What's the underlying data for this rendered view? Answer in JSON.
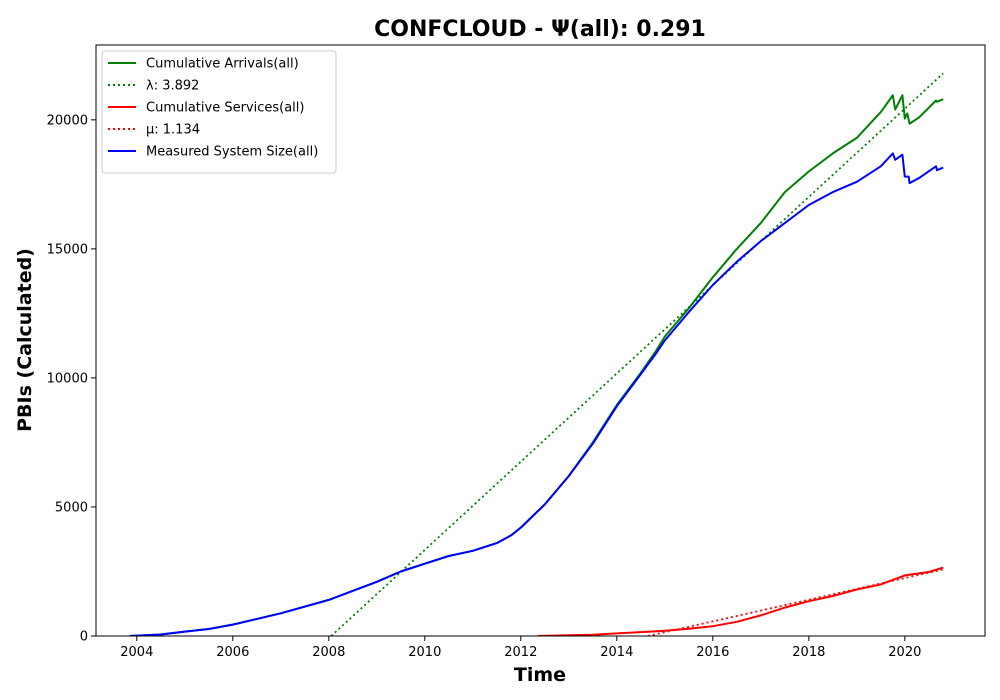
{
  "chart_data": {
    "type": "line",
    "title": "CONFCLOUD -  Ψ(all): 0.291",
    "xlabel": "Time",
    "ylabel": "PBIs (Calculated)",
    "xlim": [
      2003.15,
      2021.67
    ],
    "ylim": [
      0,
      22900
    ],
    "xticks": [
      2004,
      2006,
      2008,
      2010,
      2012,
      2014,
      2016,
      2018,
      2020
    ],
    "xtick_labels": [
      "2004",
      "2006",
      "2008",
      "2010",
      "2012",
      "2014",
      "2016",
      "2018",
      "2020"
    ],
    "yticks": [
      0,
      5000,
      10000,
      15000,
      20000
    ],
    "ytick_labels": [
      "0",
      "5000",
      "10000",
      "15000",
      "20000"
    ],
    "grid": false,
    "legend_position": "upper-left",
    "series": [
      {
        "name": "Cumulative Arrivals(all)",
        "color": "#008000",
        "style": "solid",
        "points": [
          [
            2003.85,
            0
          ],
          [
            2004.5,
            60
          ],
          [
            2005,
            170
          ],
          [
            2005.5,
            270
          ],
          [
            2006,
            440
          ],
          [
            2007,
            880
          ],
          [
            2008,
            1400
          ],
          [
            2009,
            2100
          ],
          [
            2009.5,
            2500
          ],
          [
            2010,
            2800
          ],
          [
            2010.5,
            3100
          ],
          [
            2011,
            3300
          ],
          [
            2011.5,
            3600
          ],
          [
            2011.8,
            3900
          ],
          [
            2012,
            4200
          ],
          [
            2012.5,
            5100
          ],
          [
            2013,
            6200
          ],
          [
            2013.5,
            7500
          ],
          [
            2014,
            8950
          ],
          [
            2014.5,
            10200
          ],
          [
            2014.8,
            11000
          ],
          [
            2015,
            11600
          ],
          [
            2015.5,
            12700
          ],
          [
            2016,
            13900
          ],
          [
            2016.5,
            15000
          ],
          [
            2017,
            16000
          ],
          [
            2017.5,
            17200
          ],
          [
            2018,
            18000
          ],
          [
            2018.5,
            18700
          ],
          [
            2019,
            19300
          ],
          [
            2019.5,
            20300
          ],
          [
            2019.75,
            20950
          ],
          [
            2019.8,
            20400
          ],
          [
            2019.95,
            20950
          ],
          [
            2020,
            20050
          ],
          [
            2020.05,
            20250
          ],
          [
            2020.1,
            19850
          ],
          [
            2020.3,
            20100
          ],
          [
            2020.65,
            20750
          ],
          [
            2020.67,
            20700
          ],
          [
            2020.8,
            20800
          ]
        ]
      },
      {
        "name": "λ: 3.892",
        "color": "#008000",
        "style": "dotted",
        "points": [
          [
            2008.05,
            0
          ],
          [
            2020.8,
            21800
          ]
        ]
      },
      {
        "name": "Cumulative Services(all)",
        "color": "#ff0000",
        "style": "solid",
        "points": [
          [
            2012.35,
            0
          ],
          [
            2013,
            30
          ],
          [
            2013.5,
            50
          ],
          [
            2014,
            100
          ],
          [
            2014.5,
            150
          ],
          [
            2015,
            200
          ],
          [
            2015.5,
            280
          ],
          [
            2016,
            380
          ],
          [
            2016.5,
            550
          ],
          [
            2017,
            800
          ],
          [
            2017.5,
            1100
          ],
          [
            2018,
            1350
          ],
          [
            2018.5,
            1550
          ],
          [
            2019,
            1800
          ],
          [
            2019.5,
            2000
          ],
          [
            2020,
            2350
          ],
          [
            2020.5,
            2480
          ],
          [
            2020.8,
            2650
          ]
        ]
      },
      {
        "name": "μ: 1.134",
        "color": "#ff0000",
        "style": "dotted",
        "points": [
          [
            2014.65,
            0
          ],
          [
            2020.8,
            2580
          ]
        ]
      },
      {
        "name": "Measured System Size(all)",
        "color": "#0000ff",
        "style": "solid",
        "points": [
          [
            2003.85,
            0
          ],
          [
            2004.5,
            60
          ],
          [
            2005,
            170
          ],
          [
            2005.5,
            270
          ],
          [
            2006,
            440
          ],
          [
            2007,
            880
          ],
          [
            2008,
            1400
          ],
          [
            2009,
            2100
          ],
          [
            2009.5,
            2500
          ],
          [
            2010,
            2800
          ],
          [
            2010.5,
            3100
          ],
          [
            2011,
            3300
          ],
          [
            2011.5,
            3600
          ],
          [
            2011.8,
            3900
          ],
          [
            2012,
            4200
          ],
          [
            2012.5,
            5100
          ],
          [
            2013,
            6200
          ],
          [
            2013.5,
            7450
          ],
          [
            2014,
            8900
          ],
          [
            2014.5,
            10150
          ],
          [
            2014.8,
            10900
          ],
          [
            2015,
            11450
          ],
          [
            2015.5,
            12550
          ],
          [
            2016,
            13600
          ],
          [
            2016.5,
            14500
          ],
          [
            2017,
            15300
          ],
          [
            2017.5,
            16000
          ],
          [
            2018,
            16700
          ],
          [
            2018.5,
            17200
          ],
          [
            2019,
            17600
          ],
          [
            2019.5,
            18200
          ],
          [
            2019.75,
            18700
          ],
          [
            2019.8,
            18450
          ],
          [
            2019.95,
            18650
          ],
          [
            2020,
            17800
          ],
          [
            2020.08,
            17800
          ],
          [
            2020.1,
            17550
          ],
          [
            2020.3,
            17750
          ],
          [
            2020.65,
            18200
          ],
          [
            2020.67,
            18050
          ],
          [
            2020.8,
            18150
          ]
        ]
      }
    ]
  }
}
